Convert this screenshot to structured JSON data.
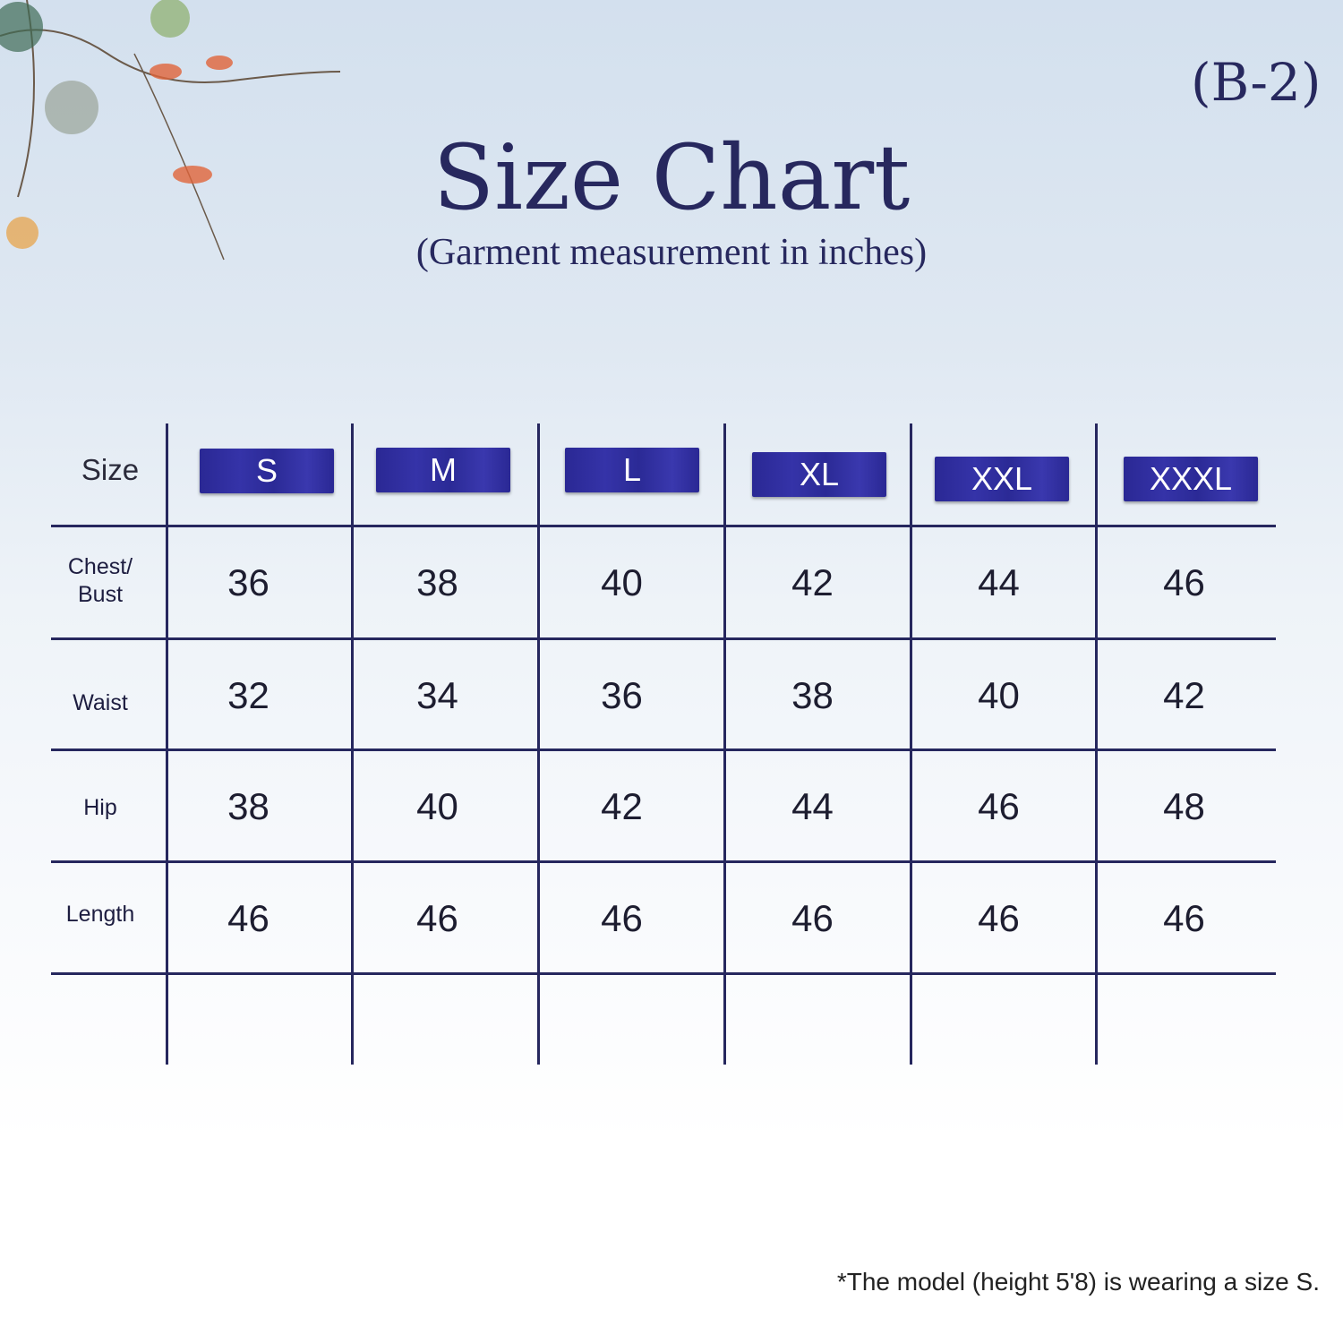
{
  "code": "(B-2)",
  "title": "Size Chart",
  "subtitle": "(Garment measurement in inches)",
  "table": {
    "size_header": "Size",
    "sizes": [
      "S",
      "M",
      "L",
      "XL",
      "XXL",
      "XXXL"
    ],
    "rows": [
      {
        "label": "Chest/\nBust",
        "values": [
          "36",
          "38",
          "40",
          "42",
          "44",
          "46"
        ]
      },
      {
        "label": "Waist",
        "values": [
          "32",
          "34",
          "36",
          "38",
          "40",
          "42"
        ]
      },
      {
        "label": "Hip",
        "values": [
          "38",
          "40",
          "42",
          "44",
          "46",
          "48"
        ]
      },
      {
        "label": "Length",
        "values": [
          "46",
          "46",
          "46",
          "46",
          "46",
          "46"
        ]
      }
    ]
  },
  "note": "*The model (height 5'8) is wearing a size S.",
  "colors": {
    "badge": "#2d2b9c",
    "lines": "#26275e",
    "text": "#27285e"
  }
}
